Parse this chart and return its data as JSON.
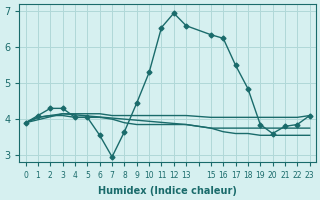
{
  "xlabel": "Humidex (Indice chaleur)",
  "ylabel": "",
  "background_color": "#d6f0f0",
  "grid_color": "#b0d8d8",
  "line_color": "#1a6b6b",
  "xlim": [
    -0.5,
    23.5
  ],
  "ylim": [
    2.8,
    7.2
  ],
  "yticks": [
    3,
    4,
    5,
    6,
    7
  ],
  "xticks": [
    0,
    1,
    2,
    3,
    4,
    5,
    6,
    7,
    8,
    9,
    10,
    11,
    12,
    13,
    14,
    15,
    16,
    17,
    18,
    19,
    20,
    21,
    22,
    23
  ],
  "xtick_labels": [
    "0",
    "1",
    "2",
    "3",
    "4",
    "5",
    "6",
    "7",
    "8",
    "9",
    "10",
    "11",
    "12",
    "13",
    "",
    "15",
    "16",
    "17",
    "18",
    "19",
    "20",
    "21",
    "22",
    "23"
  ],
  "curve1_x": [
    0,
    1,
    2,
    3,
    4,
    5,
    6,
    7,
    8,
    9,
    10,
    11,
    12,
    13,
    15,
    16,
    17,
    18,
    19,
    20,
    21,
    22,
    23
  ],
  "curve1_y": [
    3.9,
    4.1,
    4.3,
    4.3,
    4.05,
    4.05,
    3.55,
    2.95,
    3.65,
    4.45,
    5.3,
    6.55,
    6.95,
    6.6,
    6.35,
    6.25,
    5.5,
    4.85,
    3.85,
    3.6,
    3.8,
    3.85,
    4.1
  ],
  "curve2_x": [
    0,
    1,
    2,
    3,
    4,
    5,
    6,
    7,
    8,
    9,
    10,
    11,
    12,
    13,
    15,
    16,
    17,
    18,
    19,
    20,
    21,
    22,
    23
  ],
  "curve2_y": [
    3.9,
    4.05,
    4.1,
    4.1,
    4.05,
    4.05,
    4.05,
    4.0,
    3.9,
    3.85,
    3.85,
    3.85,
    3.85,
    3.85,
    3.75,
    3.75,
    3.75,
    3.75,
    3.75,
    3.75,
    3.75,
    3.75,
    3.75
  ],
  "curve3_x": [
    0,
    1,
    2,
    3,
    4,
    5,
    6,
    7,
    8,
    9,
    10,
    11,
    12,
    13,
    15,
    16,
    17,
    18,
    19,
    20,
    21,
    22,
    23
  ],
  "curve3_y": [
    3.9,
    4.05,
    4.1,
    4.15,
    4.15,
    4.15,
    4.15,
    4.1,
    4.1,
    4.1,
    4.1,
    4.1,
    4.1,
    4.1,
    4.05,
    4.05,
    4.05,
    4.05,
    4.05,
    4.05,
    4.05,
    4.05,
    4.1
  ],
  "curve4_x": [
    0,
    3,
    13,
    15,
    16,
    17,
    18,
    19,
    20,
    21,
    22,
    23
  ],
  "curve4_y": [
    3.9,
    4.15,
    3.85,
    3.75,
    3.65,
    3.6,
    3.6,
    3.55,
    3.55,
    3.55,
    3.55,
    3.55
  ]
}
